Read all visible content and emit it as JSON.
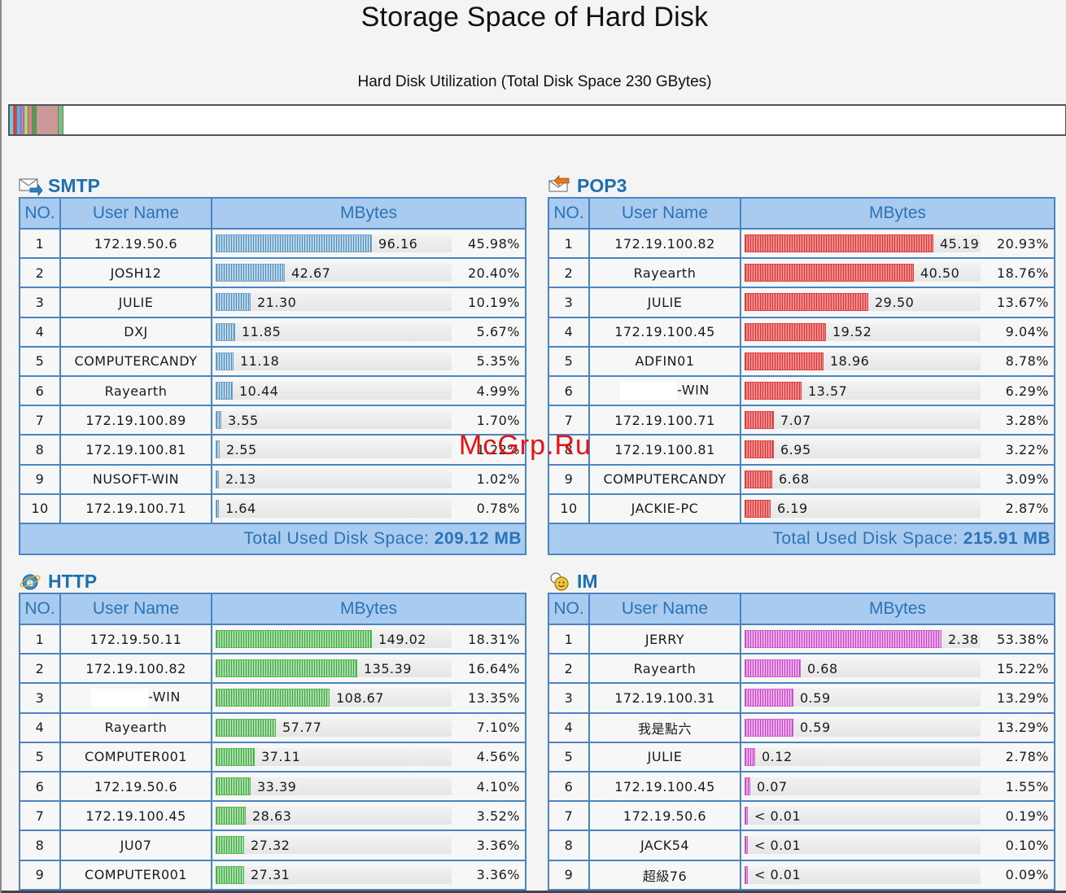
{
  "page": {
    "title": "Storage Space of Hard Disk",
    "utilization_caption": "Hard Disk Utilization (Total Disk Space 230 GBytes)",
    "utilization_segments": [
      {
        "color": "#7ec6e0",
        "share": 0.004
      },
      {
        "color": "#e03a3a",
        "share": 0.003
      },
      {
        "color": "#6aa6e0",
        "share": 0.004
      },
      {
        "color": "#d070d0",
        "share": 0.003
      },
      {
        "color": "#b0d870",
        "share": 0.004
      },
      {
        "color": "#e08080",
        "share": 0.004
      },
      {
        "color": "#50a050",
        "share": 0.004
      },
      {
        "color": "#cc9999",
        "share": 0.021
      },
      {
        "color": "#7ac07a",
        "share": 0.005
      }
    ]
  },
  "labels": {
    "col_no": "NO.",
    "col_user": "User Name",
    "col_mbytes": "MBytes",
    "total_prefix": "Total Used Disk Space: "
  },
  "smtp": {
    "title": "SMTP",
    "icon": "mail-icon",
    "total": "209.12 MB",
    "rows": [
      {
        "no": "1",
        "user": "172.19.50.6",
        "mb": "96.16",
        "pct": "45.98%",
        "frac": 0.4598
      },
      {
        "no": "2",
        "user": "JOSH12",
        "mb": "42.67",
        "pct": "20.40%",
        "frac": 0.204
      },
      {
        "no": "3",
        "user": "JULIE",
        "mb": "21.30",
        "pct": "10.19%",
        "frac": 0.1019
      },
      {
        "no": "4",
        "user": "DXJ",
        "mb": "11.85",
        "pct": "5.67%",
        "frac": 0.0567
      },
      {
        "no": "5",
        "user": "COMPUTERCANDY",
        "mb": "11.18",
        "pct": "5.35%",
        "frac": 0.0535
      },
      {
        "no": "6",
        "user": "Rayearth",
        "mb": "10.44",
        "pct": "4.99%",
        "frac": 0.0499
      },
      {
        "no": "7",
        "user": "172.19.100.89",
        "mb": "3.55",
        "pct": "1.70%",
        "frac": 0.017
      },
      {
        "no": "8",
        "user": "172.19.100.81",
        "mb": "2.55",
        "pct": "1.22%",
        "frac": 0.0122
      },
      {
        "no": "9",
        "user": "NUSOFT-WIN",
        "mb": "2.13",
        "pct": "1.02%",
        "frac": 0.0102
      },
      {
        "no": "10",
        "user": "172.19.100.71",
        "mb": "1.64",
        "pct": "0.78%",
        "frac": 0.0078
      }
    ]
  },
  "pop3": {
    "title": "POP3",
    "icon": "inbox-icon",
    "total": "215.91 MB",
    "rows": [
      {
        "no": "1",
        "user": "172.19.100.82",
        "mb": "45.19",
        "pct": "20.93%",
        "frac": 0.2093
      },
      {
        "no": "2",
        "user": "Rayearth",
        "mb": "40.50",
        "pct": "18.76%",
        "frac": 0.1876
      },
      {
        "no": "3",
        "user": "JULIE",
        "mb": "29.50",
        "pct": "13.67%",
        "frac": 0.1367
      },
      {
        "no": "4",
        "user": "172.19.100.45",
        "mb": "19.52",
        "pct": "9.04%",
        "frac": 0.0904
      },
      {
        "no": "5",
        "user": "ADFIN01",
        "mb": "18.96",
        "pct": "8.78%",
        "frac": 0.0878
      },
      {
        "no": "6",
        "user": "-WIN",
        "mb": "13.57",
        "pct": "6.29%",
        "frac": 0.0629,
        "masked": true
      },
      {
        "no": "7",
        "user": "172.19.100.71",
        "mb": "7.07",
        "pct": "3.28%",
        "frac": 0.0328
      },
      {
        "no": "8",
        "user": "172.19.100.81",
        "mb": "6.95",
        "pct": "3.22%",
        "frac": 0.0322
      },
      {
        "no": "9",
        "user": "COMPUTERCANDY",
        "mb": "6.68",
        "pct": "3.09%",
        "frac": 0.0309
      },
      {
        "no": "10",
        "user": "JACKIE-PC",
        "mb": "6.19",
        "pct": "2.87%",
        "frac": 0.0287
      }
    ]
  },
  "http": {
    "title": "HTTP",
    "icon": "browser-icon",
    "rows": [
      {
        "no": "1",
        "user": "172.19.50.11",
        "mb": "149.02",
        "pct": "18.31%",
        "frac": 0.1831
      },
      {
        "no": "2",
        "user": "172.19.100.82",
        "mb": "135.39",
        "pct": "16.64%",
        "frac": 0.1664
      },
      {
        "no": "3",
        "user": "-WIN",
        "mb": "108.67",
        "pct": "13.35%",
        "frac": 0.1335,
        "masked": true
      },
      {
        "no": "4",
        "user": "Rayearth",
        "mb": "57.77",
        "pct": "7.10%",
        "frac": 0.071
      },
      {
        "no": "5",
        "user": "COMPUTER001",
        "mb": "37.11",
        "pct": "4.56%",
        "frac": 0.0456
      },
      {
        "no": "6",
        "user": "172.19.50.6",
        "mb": "33.39",
        "pct": "4.10%",
        "frac": 0.041
      },
      {
        "no": "7",
        "user": "172.19.100.45",
        "mb": "28.63",
        "pct": "3.52%",
        "frac": 0.0352
      },
      {
        "no": "8",
        "user": "JU07",
        "mb": "27.32",
        "pct": "3.36%",
        "frac": 0.0336
      },
      {
        "no": "9",
        "user": "COMPUTER001",
        "mb": "27.31",
        "pct": "3.36%",
        "frac": 0.0336
      }
    ]
  },
  "im": {
    "title": "IM",
    "icon": "chat-icon",
    "rows": [
      {
        "no": "1",
        "user": "JERRY",
        "mb": "2.38",
        "pct": "53.38%",
        "frac": 0.5338
      },
      {
        "no": "2",
        "user": "Rayearth",
        "mb": "0.68",
        "pct": "15.22%",
        "frac": 0.1522
      },
      {
        "no": "3",
        "user": "172.19.100.31",
        "mb": "0.59",
        "pct": "13.29%",
        "frac": 0.1329
      },
      {
        "no": "4",
        "user": "我是點六",
        "mb": "0.59",
        "pct": "13.29%",
        "frac": 0.1329
      },
      {
        "no": "5",
        "user": "JULIE",
        "mb": "0.12",
        "pct": "2.78%",
        "frac": 0.0278
      },
      {
        "no": "6",
        "user": "172.19.100.45",
        "mb": "0.07",
        "pct": "1.55%",
        "frac": 0.0155
      },
      {
        "no": "7",
        "user": "172.19.50.6",
        "mb": "< 0.01",
        "pct": "0.19%",
        "frac": 0.0019
      },
      {
        "no": "8",
        "user": "JACK54",
        "mb": "< 0.01",
        "pct": "0.10%",
        "frac": 0.001
      },
      {
        "no": "9",
        "user": "超級76",
        "mb": "< 0.01",
        "pct": "0.09%",
        "frac": 0.0009
      }
    ]
  },
  "watermark": "McGrp.Ru"
}
